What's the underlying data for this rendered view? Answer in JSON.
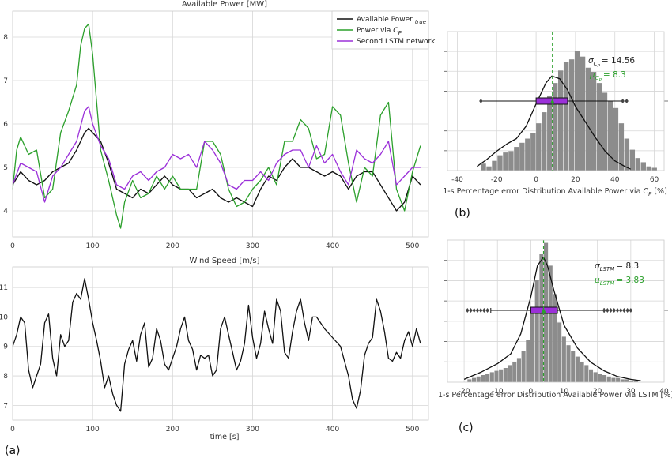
{
  "panel_labels": {
    "a": "(a)",
    "b": "(b)",
    "c": "(c)"
  },
  "chart_data": [
    {
      "id": "power",
      "type": "line",
      "title": "Available Power [MW]",
      "xlabel": "",
      "ylabel": "",
      "xlim": [
        0,
        520
      ],
      "ylim": [
        3.4,
        8.6
      ],
      "xticks": [
        0,
        100,
        200,
        300,
        400,
        500
      ],
      "yticks": [
        4,
        5,
        6,
        7,
        8
      ],
      "grid": true,
      "legend_position": "top-right",
      "series": [
        {
          "name": "Available Power",
          "name_sub": "true",
          "color": "#111111",
          "x": [
            0,
            10,
            20,
            30,
            40,
            50,
            60,
            70,
            80,
            90,
            95,
            100,
            110,
            120,
            130,
            140,
            150,
            160,
            170,
            180,
            190,
            200,
            210,
            220,
            230,
            240,
            250,
            260,
            270,
            280,
            290,
            300,
            310,
            320,
            330,
            340,
            350,
            360,
            370,
            380,
            390,
            400,
            410,
            420,
            430,
            440,
            450,
            460,
            470,
            480,
            490,
            500,
            510
          ],
          "y": [
            4.6,
            4.9,
            4.7,
            4.6,
            4.7,
            4.9,
            5.0,
            5.1,
            5.4,
            5.8,
            5.9,
            5.8,
            5.6,
            5.1,
            4.5,
            4.4,
            4.3,
            4.5,
            4.4,
            4.6,
            4.8,
            4.6,
            4.5,
            4.5,
            4.3,
            4.4,
            4.5,
            4.3,
            4.2,
            4.3,
            4.2,
            4.1,
            4.5,
            4.8,
            4.7,
            5.0,
            5.2,
            5.0,
            5.0,
            4.9,
            4.8,
            4.9,
            4.8,
            4.5,
            4.8,
            4.9,
            4.9,
            4.6,
            4.3,
            4.0,
            4.2,
            4.8,
            4.6
          ]
        },
        {
          "name": "Power via",
          "name_math": "C",
          "name_sub": "P",
          "color": "#2ca02c",
          "x": [
            0,
            5,
            10,
            20,
            30,
            40,
            50,
            60,
            70,
            80,
            85,
            90,
            95,
            100,
            110,
            120,
            130,
            135,
            140,
            150,
            160,
            170,
            180,
            190,
            200,
            210,
            220,
            230,
            240,
            250,
            260,
            270,
            280,
            290,
            300,
            310,
            320,
            330,
            340,
            350,
            360,
            370,
            380,
            390,
            400,
            410,
            420,
            430,
            440,
            450,
            460,
            470,
            480,
            490,
            500,
            510
          ],
          "y": [
            4.5,
            5.4,
            5.7,
            5.3,
            5.4,
            4.3,
            4.5,
            5.8,
            6.3,
            6.9,
            7.8,
            8.2,
            8.3,
            7.6,
            5.4,
            4.7,
            3.9,
            3.6,
            4.2,
            4.7,
            4.3,
            4.4,
            4.8,
            4.5,
            4.8,
            4.5,
            4.5,
            4.5,
            5.6,
            5.6,
            5.3,
            4.5,
            4.1,
            4.2,
            4.5,
            4.7,
            5.0,
            4.6,
            5.6,
            5.6,
            6.1,
            5.9,
            5.2,
            5.3,
            6.4,
            6.2,
            5.1,
            4.2,
            5.0,
            4.8,
            6.2,
            6.5,
            4.5,
            4.0,
            4.9,
            5.5
          ]
        },
        {
          "name": "Second LSTM network",
          "color": "#9b30d9",
          "x": [
            0,
            10,
            20,
            30,
            40,
            50,
            60,
            70,
            80,
            90,
            95,
            100,
            110,
            120,
            130,
            140,
            150,
            160,
            170,
            180,
            190,
            200,
            210,
            220,
            230,
            240,
            250,
            260,
            270,
            280,
            290,
            300,
            310,
            320,
            330,
            340,
            350,
            360,
            370,
            380,
            390,
            400,
            410,
            420,
            430,
            440,
            450,
            460,
            470,
            480,
            490,
            500,
            510
          ],
          "y": [
            4.6,
            5.1,
            5.0,
            4.9,
            4.2,
            4.8,
            5.0,
            5.3,
            5.6,
            6.3,
            6.4,
            6.0,
            5.5,
            5.2,
            4.6,
            4.5,
            4.8,
            4.9,
            4.7,
            4.9,
            5.0,
            5.3,
            5.2,
            5.3,
            5.0,
            5.6,
            5.4,
            5.1,
            4.6,
            4.5,
            4.7,
            4.7,
            4.9,
            4.7,
            5.1,
            5.3,
            5.4,
            5.4,
            5.0,
            5.5,
            5.1,
            5.3,
            4.9,
            4.6,
            5.4,
            5.2,
            5.1,
            5.3,
            5.6,
            4.6,
            4.8,
            5.0,
            5.0
          ]
        }
      ]
    },
    {
      "id": "wind",
      "type": "line",
      "title": "Wind Speed [m/s]",
      "xlabel": "time [s]",
      "ylabel": "",
      "xlim": [
        0,
        520
      ],
      "ylim": [
        6.5,
        11.7
      ],
      "xticks": [
        0,
        100,
        200,
        300,
        400,
        500
      ],
      "yticks": [
        7,
        8,
        9,
        10,
        11
      ],
      "grid": true,
      "series": [
        {
          "name": "",
          "color": "#111111",
          "x": [
            0,
            5,
            10,
            15,
            20,
            25,
            30,
            35,
            40,
            45,
            50,
            55,
            60,
            65,
            70,
            75,
            80,
            85,
            90,
            95,
            100,
            105,
            110,
            115,
            120,
            125,
            130,
            135,
            140,
            145,
            150,
            155,
            160,
            165,
            170,
            175,
            180,
            185,
            190,
            195,
            200,
            205,
            210,
            215,
            220,
            225,
            230,
            235,
            240,
            245,
            250,
            255,
            260,
            265,
            270,
            275,
            280,
            285,
            290,
            295,
            300,
            305,
            310,
            315,
            320,
            325,
            330,
            335,
            340,
            345,
            350,
            355,
            360,
            365,
            370,
            375,
            380,
            390,
            400,
            410,
            420,
            425,
            430,
            435,
            440,
            445,
            450,
            455,
            460,
            465,
            470,
            475,
            480,
            485,
            490,
            495,
            500,
            505,
            510
          ],
          "y": [
            9.0,
            9.4,
            10.0,
            9.8,
            8.2,
            7.6,
            8.0,
            8.4,
            9.8,
            10.1,
            8.6,
            8.0,
            9.4,
            9.0,
            9.2,
            10.5,
            10.8,
            10.6,
            11.3,
            10.6,
            9.8,
            9.2,
            8.5,
            7.6,
            8.0,
            7.4,
            7.0,
            6.8,
            8.4,
            8.9,
            9.2,
            8.5,
            9.4,
            9.8,
            8.3,
            8.6,
            9.6,
            9.2,
            8.4,
            8.2,
            8.6,
            9.0,
            9.6,
            10.0,
            9.2,
            8.9,
            8.2,
            8.7,
            8.6,
            8.7,
            8.0,
            8.2,
            9.6,
            10.0,
            9.4,
            8.8,
            8.2,
            8.5,
            9.1,
            10.4,
            9.3,
            8.6,
            9.1,
            10.2,
            9.6,
            9.1,
            10.6,
            10.2,
            8.8,
            8.6,
            9.5,
            10.2,
            10.6,
            9.8,
            9.2,
            10.0,
            10.0,
            9.6,
            9.3,
            9.0,
            8.0,
            7.2,
            6.9,
            7.5,
            8.7,
            9.1,
            9.3,
            10.6,
            10.2,
            9.5,
            8.6,
            8.5,
            8.8,
            8.6,
            9.2,
            9.5,
            9.0,
            9.6,
            9.1
          ]
        }
      ]
    },
    {
      "id": "hist-cp",
      "type": "bar",
      "title": "",
      "xlabel": "1-s Percentage error Distribution Available Power via",
      "xlabel_math": "C",
      "xlabel_sub": "P",
      "xlabel_suffix": "[%]",
      "xlim": [
        -45,
        65
      ],
      "xticks": [
        -40,
        -20,
        0,
        20,
        40,
        60
      ],
      "ylim": [
        0,
        100
      ],
      "bin_width": 2.8,
      "bin_start": -28,
      "counts": [
        5,
        3,
        7,
        11,
        13,
        14,
        17,
        20,
        23,
        27,
        34,
        42,
        54,
        63,
        72,
        78,
        80,
        86,
        82,
        74,
        71,
        63,
        56,
        50,
        45,
        34,
        23,
        15,
        9,
        6,
        3,
        2
      ],
      "kde_x": [
        -30,
        -25,
        -20,
        -15,
        -10,
        -5,
        0,
        5,
        8,
        12,
        16,
        20,
        25,
        30,
        35,
        40,
        45,
        48
      ],
      "kde_y": [
        3,
        8,
        14,
        19,
        23,
        32,
        48,
        63,
        68,
        66,
        58,
        46,
        35,
        24,
        14,
        7,
        3,
        1
      ],
      "bar_color": "#8c8c8c",
      "kde_color": "#111111",
      "mean_line": 8.3,
      "mean_color": "#2ca02c",
      "box": {
        "q1": 0,
        "median": 8.3,
        "q3": 16,
        "whisker_low": -28,
        "whisker_high": 44,
        "outliers": [
          -28,
          44,
          46
        ],
        "mean": 8.3,
        "color": "#9b30d9"
      },
      "stat_sigma": "σ",
      "stat_sigma_sub": "C",
      "stat_sigma_subsub": "P",
      "stat_sigma_value": "= 14.56",
      "stat_mu": "μ",
      "stat_mu_sub": "C",
      "stat_mu_subsub": "P",
      "stat_mu_value": "= 8.3"
    },
    {
      "id": "hist-lstm",
      "type": "bar",
      "title": "",
      "xlabel": "1-s Percentage error Distribution Available Power via LSTM [%]",
      "xlim": [
        -25,
        40
      ],
      "xticks": [
        -20,
        -10,
        0,
        10,
        20,
        30,
        40
      ],
      "ylim": [
        0,
        100
      ],
      "bin_width": 1.35,
      "bin_start": -19,
      "counts": [
        2,
        3,
        4,
        5,
        6,
        7,
        8,
        9,
        10,
        12,
        14,
        17,
        22,
        30,
        50,
        72,
        90,
        98,
        82,
        62,
        42,
        32,
        26,
        22,
        18,
        14,
        12,
        9,
        7,
        6,
        5,
        4,
        3,
        3,
        2,
        2,
        1,
        1
      ],
      "kde_x": [
        -20,
        -15,
        -10,
        -6,
        -3,
        0,
        2,
        3.8,
        5,
        7,
        10,
        14,
        18,
        22,
        26,
        30,
        33
      ],
      "kde_y": [
        2,
        7,
        13,
        20,
        34,
        60,
        82,
        88,
        82,
        64,
        40,
        24,
        14,
        8,
        4,
        2,
        1
      ],
      "bar_color": "#8c8c8c",
      "kde_color": "#111111",
      "mean_line": 3.83,
      "mean_color": "#2ca02c",
      "box": {
        "q1": 0,
        "median": 3.8,
        "q3": 8,
        "whisker_low": -12,
        "whisker_high": 22,
        "outliers": [
          -19,
          -18,
          -17,
          -16,
          -15,
          -14,
          -13,
          22,
          23,
          24,
          25,
          26,
          27,
          28,
          29,
          30
        ],
        "mean": 3.83,
        "color": "#9b30d9"
      },
      "stat_sigma": "σ",
      "stat_sigma_sub": "LSTM",
      "stat_sigma_value": "= 8.3",
      "stat_mu": "μ",
      "stat_mu_sub": "LSTM",
      "stat_mu_value": "= 3.83"
    }
  ]
}
